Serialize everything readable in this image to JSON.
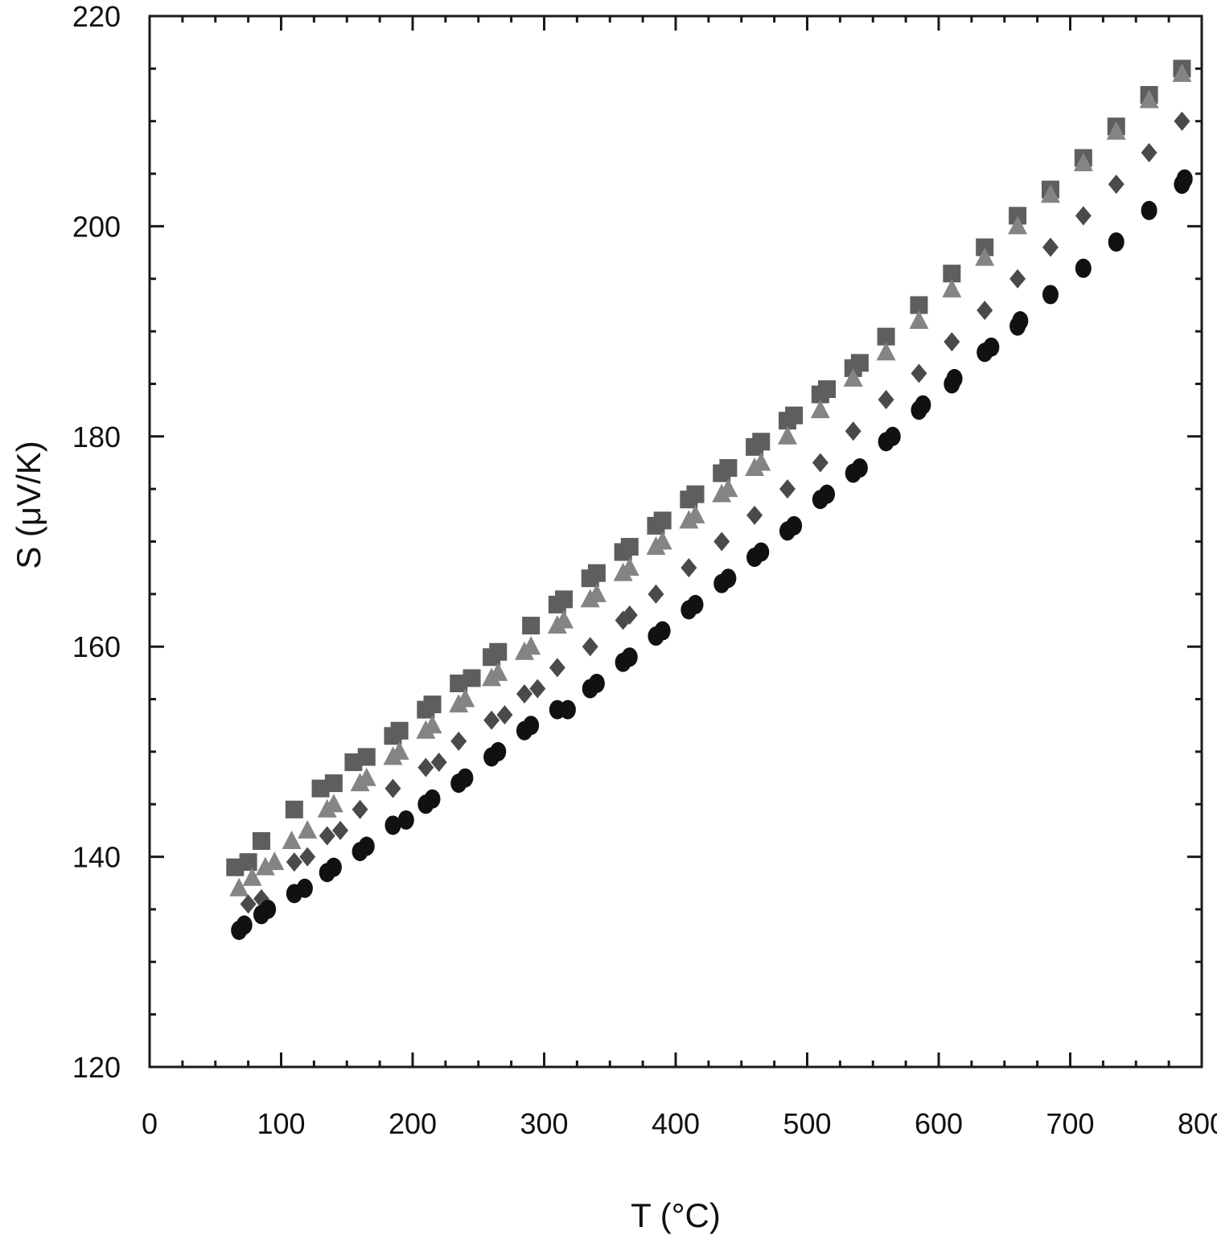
{
  "chart_data": {
    "type": "scatter",
    "xlabel": "T (°C)",
    "ylabel": "S (μV/K)",
    "xlim": [
      0,
      800
    ],
    "ylim": [
      120,
      220
    ],
    "xticks": [
      "0",
      "100",
      "200",
      "300",
      "400",
      "500",
      "600",
      "700",
      "800"
    ],
    "yticks": [
      "120",
      "140",
      "160",
      "180",
      "200",
      "220"
    ],
    "grid": false,
    "legend": "none",
    "series": [
      {
        "marker": "square",
        "color": "#5e5e5e",
        "points": [
          [
            65,
            139.0
          ],
          [
            75,
            139.5
          ],
          [
            85,
            141.5
          ],
          [
            110,
            144.5
          ],
          [
            130,
            146.5
          ],
          [
            140,
            147.0
          ],
          [
            155,
            149.0
          ],
          [
            165,
            149.5
          ],
          [
            185,
            151.5
          ],
          [
            190,
            152.0
          ],
          [
            210,
            154.0
          ],
          [
            215,
            154.5
          ],
          [
            235,
            156.5
          ],
          [
            245,
            157.0
          ],
          [
            260,
            159.0
          ],
          [
            265,
            159.5
          ],
          [
            290,
            162.0
          ],
          [
            310,
            164.0
          ],
          [
            315,
            164.5
          ],
          [
            335,
            166.5
          ],
          [
            340,
            167.0
          ],
          [
            360,
            169.0
          ],
          [
            365,
            169.5
          ],
          [
            385,
            171.5
          ],
          [
            390,
            172.0
          ],
          [
            410,
            174.0
          ],
          [
            415,
            174.5
          ],
          [
            435,
            176.5
          ],
          [
            440,
            177.0
          ],
          [
            460,
            179.0
          ],
          [
            465,
            179.5
          ],
          [
            485,
            181.5
          ],
          [
            490,
            182.0
          ],
          [
            510,
            184.0
          ],
          [
            515,
            184.5
          ],
          [
            535,
            186.5
          ],
          [
            540,
            187.0
          ],
          [
            560,
            189.5
          ],
          [
            585,
            192.5
          ],
          [
            610,
            195.5
          ],
          [
            635,
            198.0
          ],
          [
            660,
            201.0
          ],
          [
            685,
            203.5
          ],
          [
            710,
            206.5
          ],
          [
            735,
            209.5
          ],
          [
            760,
            212.5
          ],
          [
            785,
            215.0
          ]
        ]
      },
      {
        "marker": "triangle",
        "color": "#848484",
        "points": [
          [
            68,
            137.0
          ],
          [
            78,
            138.0
          ],
          [
            88,
            139.0
          ],
          [
            95,
            139.5
          ],
          [
            108,
            141.5
          ],
          [
            120,
            142.5
          ],
          [
            135,
            144.5
          ],
          [
            140,
            145.0
          ],
          [
            160,
            147.0
          ],
          [
            165,
            147.5
          ],
          [
            185,
            149.5
          ],
          [
            190,
            150.0
          ],
          [
            210,
            152.0
          ],
          [
            215,
            152.5
          ],
          [
            235,
            154.5
          ],
          [
            240,
            155.0
          ],
          [
            260,
            157.0
          ],
          [
            265,
            157.5
          ],
          [
            285,
            159.5
          ],
          [
            290,
            160.0
          ],
          [
            310,
            162.0
          ],
          [
            315,
            162.5
          ],
          [
            335,
            164.5
          ],
          [
            340,
            165.0
          ],
          [
            360,
            167.0
          ],
          [
            365,
            167.5
          ],
          [
            385,
            169.5
          ],
          [
            390,
            170.0
          ],
          [
            410,
            172.0
          ],
          [
            415,
            172.5
          ],
          [
            435,
            174.5
          ],
          [
            440,
            175.0
          ],
          [
            460,
            177.0
          ],
          [
            465,
            177.5
          ],
          [
            485,
            180.0
          ],
          [
            510,
            182.5
          ],
          [
            535,
            185.5
          ],
          [
            560,
            188.0
          ],
          [
            585,
            191.0
          ],
          [
            610,
            194.0
          ],
          [
            635,
            197.0
          ],
          [
            660,
            200.0
          ],
          [
            685,
            203.0
          ],
          [
            710,
            206.0
          ],
          [
            735,
            209.0
          ],
          [
            760,
            212.0
          ],
          [
            785,
            214.5
          ]
        ]
      },
      {
        "marker": "diamond",
        "color": "#4a4a4a",
        "points": [
          [
            75,
            135.5
          ],
          [
            85,
            136.0
          ],
          [
            110,
            139.5
          ],
          [
            120,
            140.0
          ],
          [
            135,
            142.0
          ],
          [
            145,
            142.5
          ],
          [
            160,
            144.5
          ],
          [
            185,
            146.5
          ],
          [
            210,
            148.5
          ],
          [
            220,
            149.0
          ],
          [
            235,
            151.0
          ],
          [
            260,
            153.0
          ],
          [
            270,
            153.5
          ],
          [
            285,
            155.5
          ],
          [
            295,
            156.0
          ],
          [
            310,
            158.0
          ],
          [
            335,
            160.0
          ],
          [
            360,
            162.5
          ],
          [
            365,
            163.0
          ],
          [
            385,
            165.0
          ],
          [
            410,
            167.5
          ],
          [
            435,
            170.0
          ],
          [
            460,
            172.5
          ],
          [
            485,
            175.0
          ],
          [
            510,
            177.5
          ],
          [
            535,
            180.5
          ],
          [
            560,
            183.5
          ],
          [
            585,
            186.0
          ],
          [
            610,
            189.0
          ],
          [
            635,
            192.0
          ],
          [
            660,
            195.0
          ],
          [
            685,
            198.0
          ],
          [
            710,
            201.0
          ],
          [
            735,
            204.0
          ],
          [
            760,
            207.0
          ],
          [
            785,
            210.0
          ]
        ]
      },
      {
        "marker": "circle",
        "color": "#111111",
        "points": [
          [
            68,
            133.0
          ],
          [
            72,
            133.5
          ],
          [
            85,
            134.5
          ],
          [
            90,
            135.0
          ],
          [
            110,
            136.5
          ],
          [
            118,
            137.0
          ],
          [
            135,
            138.5
          ],
          [
            140,
            139.0
          ],
          [
            160,
            140.5
          ],
          [
            165,
            141.0
          ],
          [
            185,
            143.0
          ],
          [
            195,
            143.5
          ],
          [
            210,
            145.0
          ],
          [
            215,
            145.5
          ],
          [
            235,
            147.0
          ],
          [
            240,
            147.5
          ],
          [
            260,
            149.5
          ],
          [
            265,
            150.0
          ],
          [
            285,
            152.0
          ],
          [
            290,
            152.5
          ],
          [
            310,
            154.0
          ],
          [
            318,
            154.0
          ],
          [
            335,
            156.0
          ],
          [
            340,
            156.5
          ],
          [
            360,
            158.5
          ],
          [
            365,
            159.0
          ],
          [
            385,
            161.0
          ],
          [
            390,
            161.5
          ],
          [
            410,
            163.5
          ],
          [
            415,
            164.0
          ],
          [
            435,
            166.0
          ],
          [
            440,
            166.5
          ],
          [
            460,
            168.5
          ],
          [
            465,
            169.0
          ],
          [
            485,
            171.0
          ],
          [
            490,
            171.5
          ],
          [
            510,
            174.0
          ],
          [
            515,
            174.5
          ],
          [
            535,
            176.5
          ],
          [
            540,
            177.0
          ],
          [
            560,
            179.5
          ],
          [
            565,
            180.0
          ],
          [
            585,
            182.5
          ],
          [
            588,
            183.0
          ],
          [
            610,
            185.0
          ],
          [
            612,
            185.5
          ],
          [
            635,
            188.0
          ],
          [
            640,
            188.5
          ],
          [
            660,
            190.5
          ],
          [
            662,
            191.0
          ],
          [
            685,
            193.5
          ],
          [
            710,
            196.0
          ],
          [
            735,
            198.5
          ],
          [
            760,
            201.5
          ],
          [
            785,
            204.0
          ],
          [
            787,
            204.5
          ]
        ]
      }
    ]
  }
}
